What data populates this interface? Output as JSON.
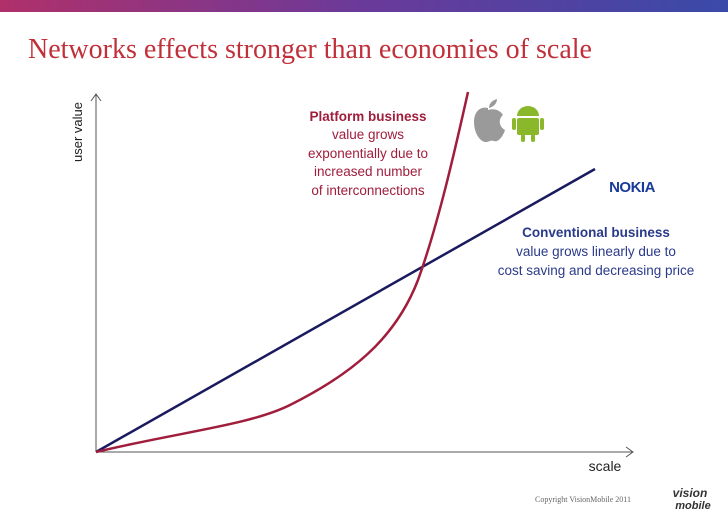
{
  "header": {
    "title": "Networks effects stronger than economies of scale"
  },
  "axes": {
    "y_label": "user value",
    "x_label": "scale"
  },
  "annotations": {
    "platform": {
      "title": "Platform business",
      "lines": [
        "value grows",
        "exponentially due to",
        "increased number",
        "of interconnections"
      ]
    },
    "conventional": {
      "title": "Conventional business",
      "lines": [
        "value grows linearly due to",
        "cost saving and decreasing price"
      ]
    }
  },
  "logos": {
    "nokia": "NOKIA",
    "brand": [
      "vision",
      "mobile"
    ]
  },
  "footer": {
    "copyright": "Copyright VisionMobile 2011"
  }
}
